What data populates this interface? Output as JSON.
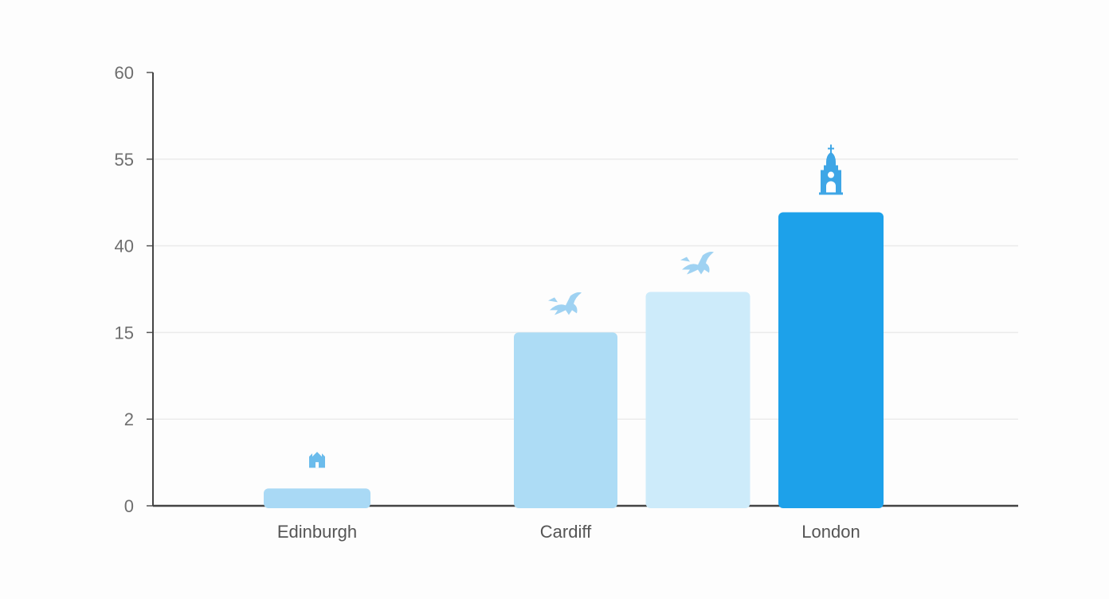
{
  "chart_data": {
    "type": "bar",
    "title": "",
    "xlabel": "",
    "ylabel": "",
    "y_ticks": [
      0,
      2,
      15,
      40,
      55,
      60
    ],
    "ylim": [
      0,
      60
    ],
    "grid": true,
    "categories": [
      "Edinburgh",
      "Cardiff",
      "",
      "London"
    ],
    "values": [
      0.4,
      15,
      26.7,
      45.8
    ],
    "bar_colors": [
      "#a9d9f5",
      "#addcf5",
      "#cdebfa",
      "#1da1ea"
    ],
    "icons": [
      "castle-icon",
      "dragon-icon",
      "dragon-icon",
      "clock-tower-icon"
    ],
    "icon_colors": [
      "#6bbcec",
      "#9fd2f2",
      "#9fd2f2",
      "#3fa6e6"
    ]
  }
}
